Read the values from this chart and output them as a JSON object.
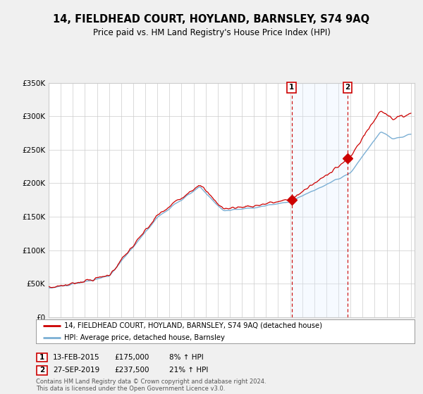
{
  "title": "14, FIELDHEAD COURT, HOYLAND, BARNSLEY, S74 9AQ",
  "subtitle": "Price paid vs. HM Land Registry's House Price Index (HPI)",
  "legend_line1": "14, FIELDHEAD COURT, HOYLAND, BARNSLEY, S74 9AQ (detached house)",
  "legend_line2": "HPI: Average price, detached house, Barnsley",
  "sale1_date": "13-FEB-2015",
  "sale1_price": 175000,
  "sale1_hpi_pct": "8% ↑ HPI",
  "sale1_year": 2015.12,
  "sale2_date": "27-SEP-2019",
  "sale2_price": 237500,
  "sale2_hpi_pct": "21% ↑ HPI",
  "sale2_year": 2019.75,
  "ylabel_ticks": [
    0,
    50000,
    100000,
    150000,
    200000,
    250000,
    300000,
    350000
  ],
  "ylabel_labels": [
    "£0",
    "£50K",
    "£100K",
    "£150K",
    "£200K",
    "£250K",
    "£300K",
    "£350K"
  ],
  "hpi_line_color": "#7bafd4",
  "hpi_fill_color": "#ddeeff",
  "price_color": "#cc0000",
  "background_color": "#f0f0f0",
  "plot_bg_color": "#ffffff",
  "grid_color": "#cccccc",
  "footer_text": "Contains HM Land Registry data © Crown copyright and database right 2024.\nThis data is licensed under the Open Government Licence v3.0."
}
